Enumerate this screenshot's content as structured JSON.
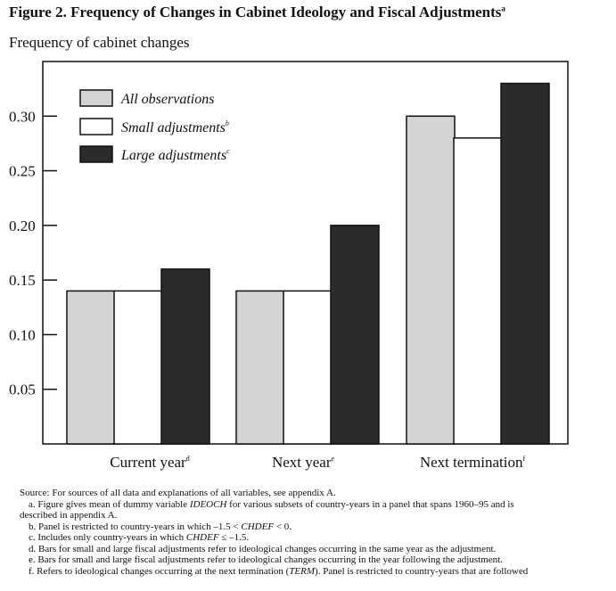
{
  "chart_data": {
    "type": "bar",
    "title": "Figure 2. Frequency of Changes in Cabinet Ideology and Fiscal Adjustments",
    "title_note": "a",
    "ylabel": "Frequency of cabinet changes",
    "ylim": [
      0,
      0.35
    ],
    "yticks": [
      "0.05",
      "0.10",
      "0.15",
      "0.20",
      "0.25",
      "0.30"
    ],
    "categories": [
      "Current year",
      "Next year",
      "Next termination"
    ],
    "category_notes": [
      "d",
      "e",
      "f"
    ],
    "series": [
      {
        "name": "All observations",
        "note": "",
        "color": "#d4d4d4",
        "values": [
          0.14,
          0.14,
          0.3
        ]
      },
      {
        "name": "Small adjustments",
        "note": "b",
        "color": "#ffffff",
        "values": [
          0.14,
          0.14,
          0.28
        ]
      },
      {
        "name": "Large adjustments",
        "note": "c",
        "color": "#2b2b2b",
        "values": [
          0.16,
          0.2,
          0.33
        ]
      }
    ],
    "legend_position": "top-left",
    "grid": false
  },
  "notes": {
    "source": "Source: For sources of all data and explanations of all variables, see appendix A.",
    "a_pre": "a. Figure gives mean of dummy variable ",
    "a_var": "IDEOCH",
    "a_post": " for various subsets of country-years in a panel that spans 1960–95 and is",
    "a_cont": "described in appendix A.",
    "b_pre": "b. Panel is restricted to country-years in which –1.5 < ",
    "b_var": "CHDEF",
    "b_post": " < 0.",
    "c_pre": "c. Includes only country-years in which ",
    "c_var": "CHDEF",
    "c_post": " ≤ –1.5.",
    "d": "d. Bars for small and large fiscal adjustments refer to ideological changes occurring in the same year as the adjustment.",
    "e": "e. Bars for small and large fiscal adjustments refer to ideological changes occurring in the year following the adjustment.",
    "f_pre": "f. Refers to ideological changes occurring at the next termination (",
    "f_var": "TERM",
    "f_post": "). Panel is restricted to country-years that are followed"
  }
}
